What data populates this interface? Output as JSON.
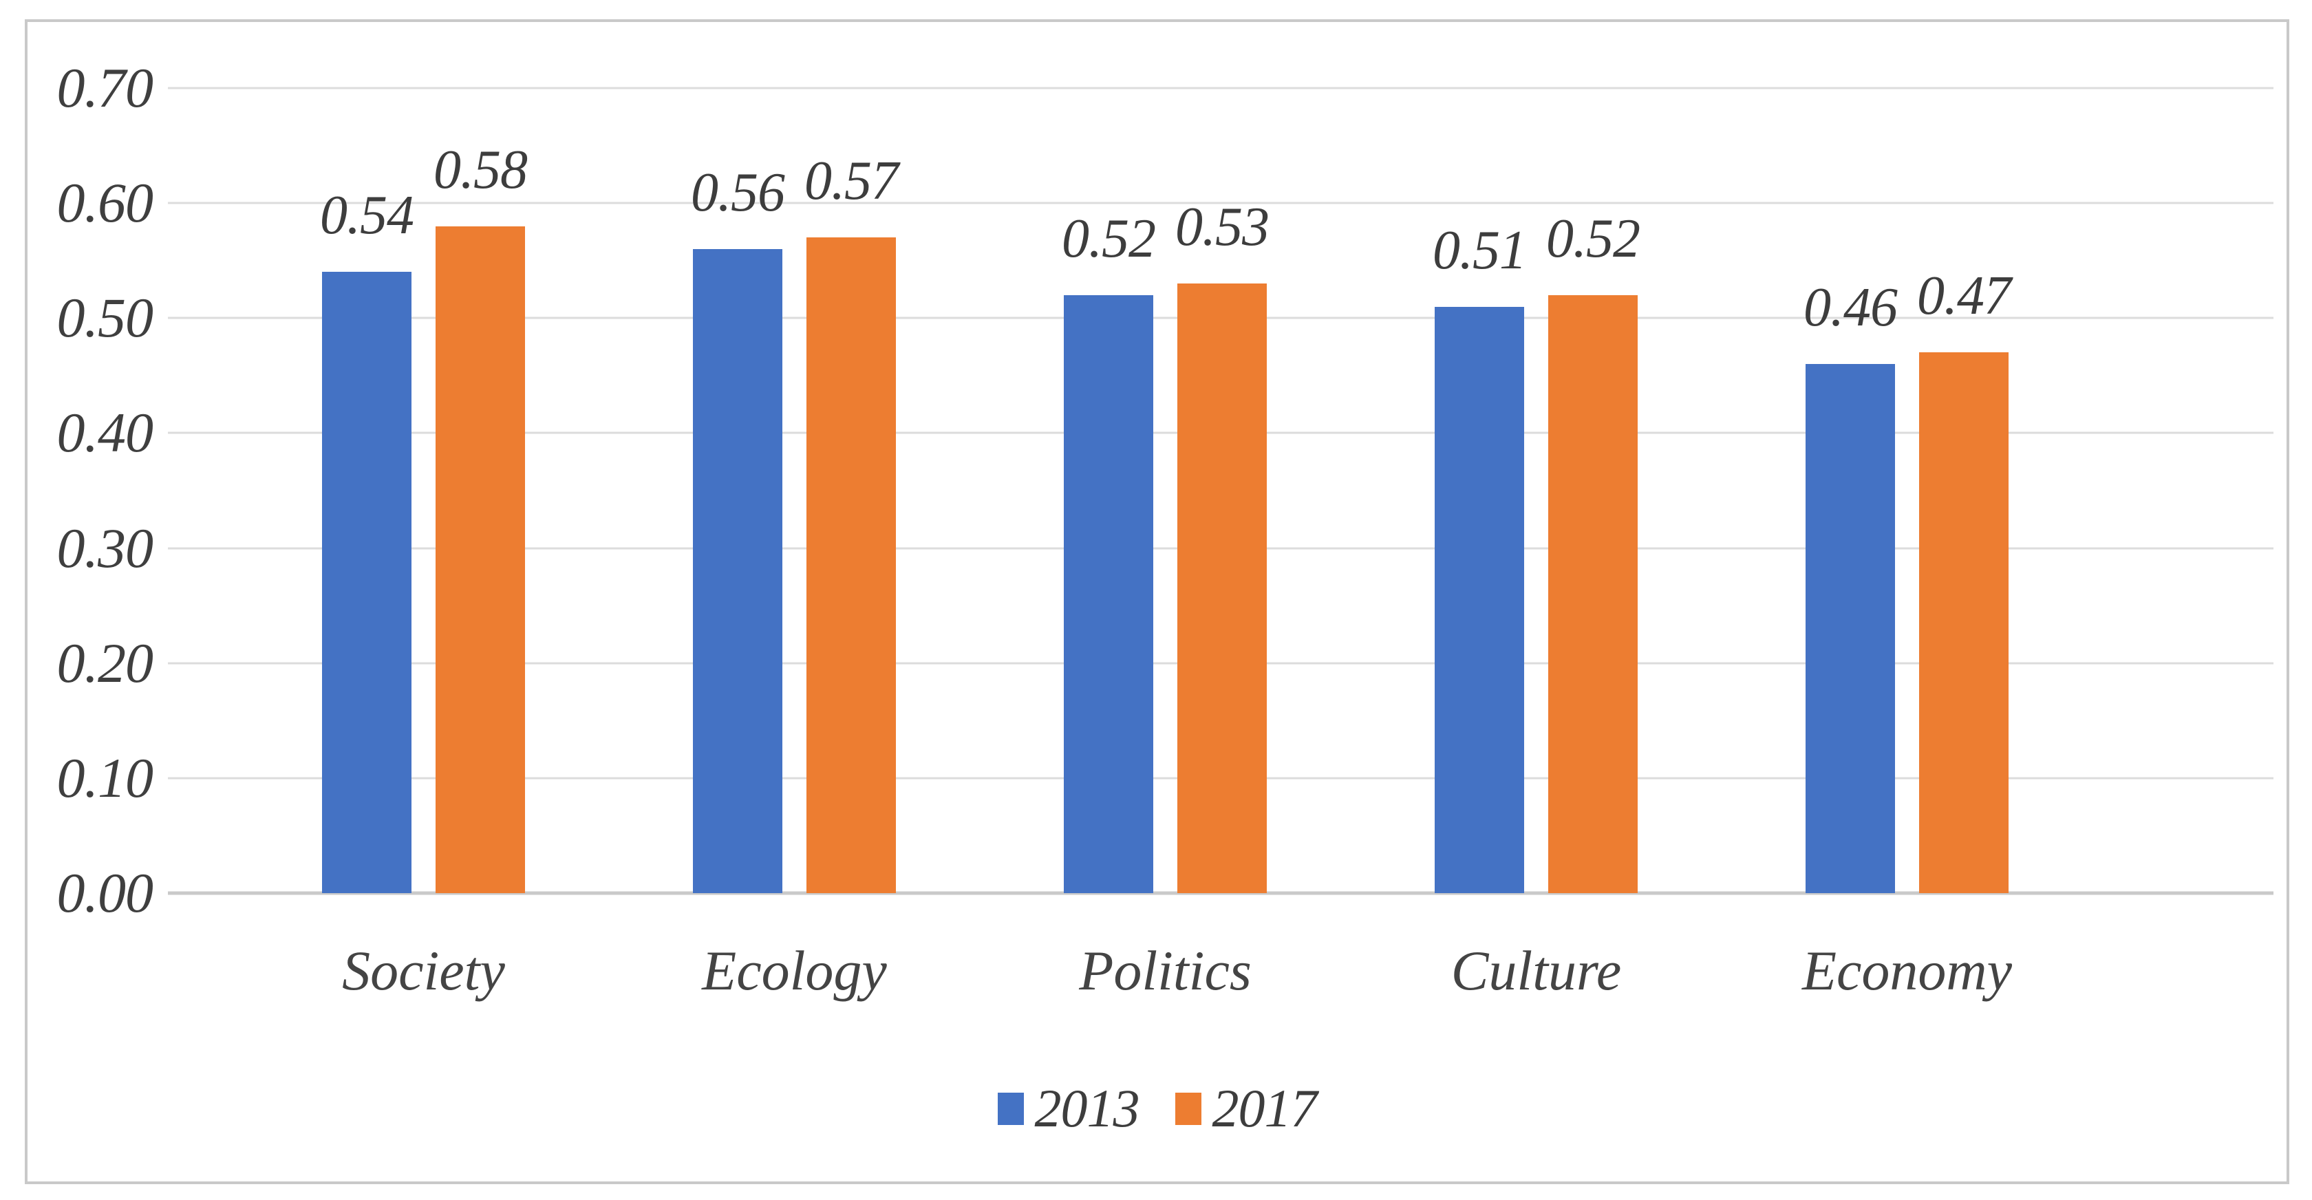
{
  "figure": {
    "background_color": "#ffffff",
    "frame_border_color": "#c9c9c9"
  },
  "chart_data": {
    "type": "bar",
    "title": "",
    "categories": [
      "Society",
      "Ecology",
      "Politics",
      "Culture",
      "Economy"
    ],
    "series": [
      {
        "name": "2013",
        "color": "#4472C4",
        "values": [
          0.54,
          0.56,
          0.52,
          0.51,
          0.46
        ],
        "value_labels": [
          "0.54",
          "0.56",
          "0.52",
          "0.51",
          "0.46"
        ]
      },
      {
        "name": "2017",
        "color": "#ED7D31",
        "values": [
          0.58,
          0.57,
          0.53,
          0.52,
          0.47
        ],
        "value_labels": [
          "0.58",
          "0.57",
          "0.53",
          "0.52",
          "0.47"
        ]
      }
    ],
    "ylim": [
      0,
      0.7
    ],
    "ytick_step": 0.1,
    "yticks": [
      {
        "value": 0.7,
        "label": "0.70"
      },
      {
        "value": 0.6,
        "label": "0.60"
      },
      {
        "value": 0.5,
        "label": "0.50"
      },
      {
        "value": 0.4,
        "label": "0.40"
      },
      {
        "value": 0.3,
        "label": "0.30"
      },
      {
        "value": 0.2,
        "label": "0.20"
      },
      {
        "value": 0.1,
        "label": "0.10"
      },
      {
        "value": 0.0,
        "label": "0.00"
      }
    ],
    "grid": true,
    "gridline_color": "#dcdcdc",
    "baseline_color": "#c9c9c9",
    "text_color": "#3d3d3d",
    "legend": {
      "position": "bottom",
      "entries": [
        {
          "label": "2013",
          "color": "#4472C4"
        },
        {
          "label": "2017",
          "color": "#ED7D31"
        }
      ]
    }
  }
}
